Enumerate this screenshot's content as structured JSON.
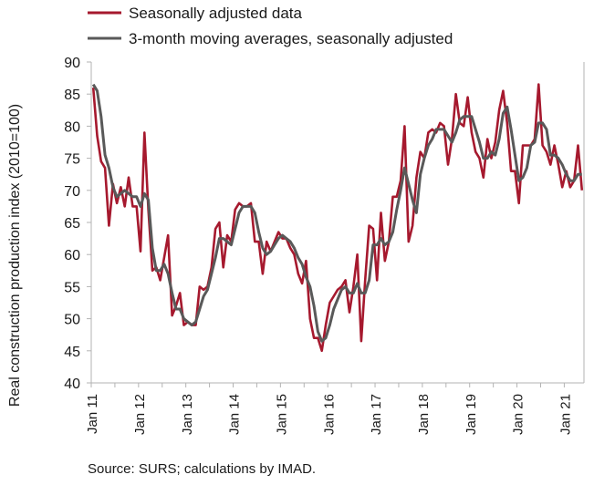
{
  "chart_data": {
    "type": "line",
    "ylabel": "Real construction production index (2010=100)",
    "ylim": [
      40,
      90
    ],
    "yticks": [
      40,
      45,
      50,
      55,
      60,
      65,
      70,
      75,
      80,
      85,
      90
    ],
    "x_range": [
      "2011-01",
      "2021-12"
    ],
    "xticks": [
      "Jan 11",
      "Jan 12",
      "Jan 13",
      "Jan 14",
      "Jan 15",
      "Jan 16",
      "Jan 17",
      "Jan 18",
      "Jan 19",
      "Jan 20",
      "Jan 21"
    ],
    "legend_position": "top-left",
    "grid": false,
    "source": "Source: SURS; calculations by IMAD.",
    "series": [
      {
        "name": "Seasonally adjusted data",
        "color": "#a6192e",
        "values": [
          86.0,
          78.5,
          74.5,
          73.5,
          64.5,
          71.0,
          68.0,
          70.5,
          67.5,
          72.0,
          67.5,
          67.5,
          60.5,
          79.0,
          67.0,
          57.5,
          58.0,
          56.0,
          59.5,
          63.0,
          50.5,
          52.0,
          54.0,
          49.0,
          49.5,
          49.0,
          49.0,
          55.0,
          54.5,
          55.0,
          58.0,
          64.0,
          65.0,
          58.0,
          63.0,
          62.0,
          67.0,
          68.0,
          67.5,
          67.5,
          68.0,
          62.0,
          62.0,
          57.0,
          62.0,
          60.5,
          62.0,
          63.5,
          62.5,
          62.5,
          61.0,
          60.0,
          57.0,
          55.5,
          59.0,
          50.0,
          47.0,
          47.0,
          45.0,
          49.0,
          52.5,
          53.5,
          54.5,
          55.0,
          56.0,
          51.0,
          55.0,
          60.0,
          46.5,
          56.0,
          64.5,
          64.0,
          56.0,
          66.5,
          59.0,
          62.0,
          69.0,
          69.0,
          71.5,
          80.0,
          62.0,
          64.5,
          72.0,
          76.0,
          75.0,
          79.0,
          79.5,
          79.0,
          80.5,
          80.0,
          74.0,
          78.0,
          85.0,
          80.5,
          80.0,
          84.5,
          79.0,
          76.0,
          75.0,
          72.0,
          78.0,
          75.0,
          77.5,
          82.5,
          85.5,
          80.5,
          73.0,
          73.0,
          68.0,
          77.0,
          77.0,
          77.0,
          78.0,
          86.5,
          77.0,
          76.0,
          74.0,
          77.0,
          74.0,
          70.5,
          73.0,
          70.5,
          71.5,
          77.0,
          70.0
        ]
      },
      {
        "name": "3-month moving averages, seasonally adjusted",
        "color": "#595959",
        "values": [
          86.5,
          85.5,
          81.5,
          75.5,
          73.5,
          70.5,
          69.0,
          69.5,
          70.0,
          69.5,
          69.0,
          69.0,
          67.5,
          69.5,
          68.5,
          61.0,
          57.5,
          57.5,
          58.5,
          57.0,
          54.0,
          51.5,
          51.5,
          50.0,
          49.5,
          49.0,
          49.5,
          51.5,
          53.5,
          54.5,
          57.0,
          59.5,
          62.5,
          62.5,
          62.0,
          61.5,
          64.0,
          66.5,
          67.5,
          67.5,
          67.5,
          66.5,
          63.5,
          61.0,
          60.0,
          60.5,
          61.5,
          62.5,
          63.0,
          62.5,
          62.0,
          61.0,
          59.5,
          58.5,
          56.5,
          55.0,
          52.0,
          48.0,
          46.5,
          47.0,
          49.0,
          51.5,
          53.0,
          54.5,
          55.0,
          54.0,
          54.0,
          55.5,
          54.0,
          54.0,
          56.0,
          61.5,
          61.5,
          62.5,
          61.5,
          62.0,
          63.5,
          67.0,
          70.0,
          73.5,
          71.0,
          68.5,
          66.5,
          72.5,
          75.0,
          77.0,
          78.0,
          79.5,
          79.5,
          79.5,
          78.5,
          77.5,
          79.0,
          81.0,
          81.5,
          81.5,
          81.5,
          79.5,
          77.5,
          75.0,
          75.0,
          76.0,
          75.5,
          78.0,
          82.0,
          83.0,
          79.5,
          75.5,
          71.5,
          72.0,
          73.5,
          77.0,
          77.5,
          80.5,
          80.5,
          79.5,
          75.5,
          75.5,
          75.0,
          74.0,
          72.5,
          71.5,
          71.5,
          72.5,
          72.5
        ]
      }
    ]
  }
}
